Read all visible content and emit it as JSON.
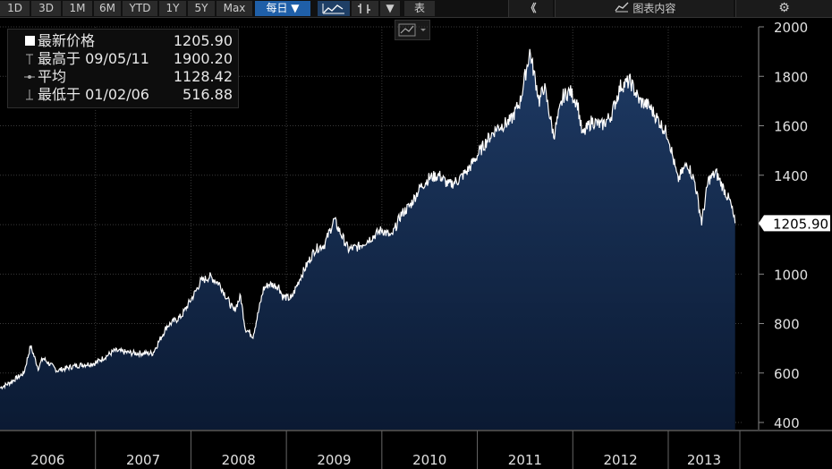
{
  "toolbar": {
    "ranges": [
      "1D",
      "3D",
      "1M",
      "6M",
      "YTD",
      "1Y",
      "5Y",
      "Max"
    ],
    "frequency": "每日 ▼",
    "table_label": "表",
    "collapse_label": "《",
    "chart_content_label": "图表内容",
    "dropdown_arrow": "▼"
  },
  "legend": {
    "items": [
      {
        "label": "最新价格",
        "value": "1205.90",
        "marker": "square"
      },
      {
        "label": "最高于 09/05/11",
        "value": "1900.20",
        "marker": "high"
      },
      {
        "label": "平均",
        "value": "1128.42",
        "marker": "avg"
      },
      {
        "label": "最低于 01/02/06",
        "value": "516.88",
        "marker": "low"
      }
    ]
  },
  "colors": {
    "background": "#000000",
    "line": "#ffffff",
    "fill_top": "#1e3a64",
    "fill_bottom": "#0b1a33",
    "accent": "#1f5fa8"
  },
  "chart_data": {
    "type": "area",
    "title": "",
    "xlabel": "",
    "ylabel": "",
    "ylim": [
      400,
      2000
    ],
    "yticks": [
      400,
      600,
      800,
      1000,
      1200,
      1400,
      1600,
      1800,
      2000
    ],
    "xlim": [
      2006.0,
      2013.75
    ],
    "year_labels": [
      "2006",
      "2007",
      "2008",
      "2009",
      "2010",
      "2011",
      "2012",
      "2013"
    ],
    "last_value_label": "1205.90",
    "grid": true,
    "series": [
      {
        "x": [
          2006.0,
          2006.1,
          2006.25,
          2006.32,
          2006.4,
          2006.45,
          2006.6,
          2006.8,
          2007.0,
          2007.2,
          2007.4,
          2007.6,
          2007.75,
          2007.9,
          2008.05,
          2008.1,
          2008.2,
          2008.3,
          2008.45,
          2008.52,
          2008.57,
          2008.65,
          2008.72,
          2008.76,
          2008.82,
          2008.92,
          2008.96,
          2009.05,
          2009.15,
          2009.3,
          2009.4,
          2009.5,
          2009.65,
          2009.75,
          2009.9,
          2010.0,
          2010.1,
          2010.2,
          2010.3,
          2010.4,
          2010.5,
          2010.6,
          2010.7,
          2010.8,
          2010.9,
          2011.0,
          2011.1,
          2011.2,
          2011.35,
          2011.45,
          2011.55,
          2011.6,
          2011.65,
          2011.7,
          2011.8,
          2011.9,
          2011.97,
          2012.05,
          2012.1,
          2012.2,
          2012.3,
          2012.4,
          2012.5,
          2012.6,
          2012.7,
          2012.8,
          2012.9,
          2013.0,
          2013.1,
          2013.2,
          2013.28,
          2013.35,
          2013.42,
          2013.5,
          2013.6,
          2013.65,
          2013.7
        ],
        "y": [
          540,
          560,
          600,
          710,
          620,
          660,
          610,
          630,
          640,
          690,
          680,
          680,
          790,
          830,
          930,
          970,
          990,
          960,
          850,
          910,
          780,
          750,
          870,
          940,
          960,
          950,
          910,
          900,
          990,
          1100,
          1120,
          1220,
          1100,
          1110,
          1150,
          1180,
          1150,
          1240,
          1280,
          1350,
          1390,
          1400,
          1360,
          1380,
          1420,
          1480,
          1540,
          1590,
          1620,
          1700,
          1900,
          1800,
          1700,
          1760,
          1560,
          1720,
          1740,
          1690,
          1560,
          1620,
          1600,
          1640,
          1760,
          1780,
          1700,
          1680,
          1620,
          1560,
          1380,
          1450,
          1370,
          1210,
          1380,
          1410,
          1330,
          1290,
          1205.9
        ]
      }
    ]
  }
}
